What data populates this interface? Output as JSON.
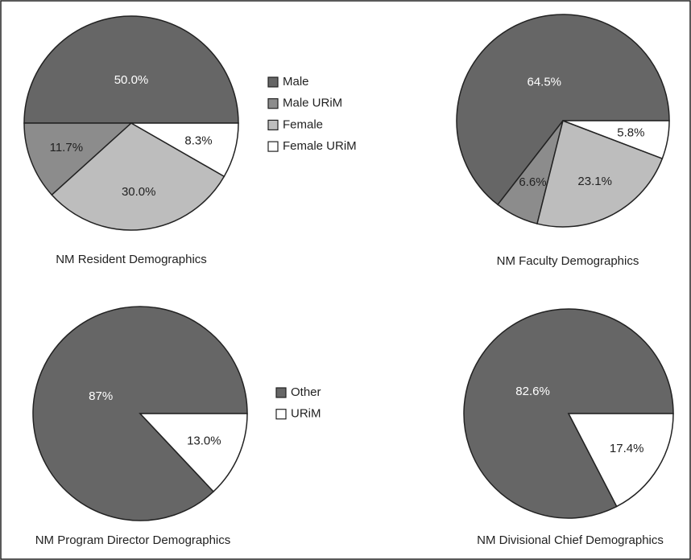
{
  "chart_data": [
    {
      "type": "pie",
      "title": "NM Resident Demographics",
      "categories": [
        "Male",
        "Male URiM",
        "Female",
        "Female URiM"
      ],
      "values": [
        50.0,
        11.7,
        30.0,
        8.3
      ],
      "value_labels": [
        "50.0%",
        "11.7%",
        "30.0%",
        "8.3%"
      ],
      "colors": [
        "#666666",
        "#8c8c8c",
        "#bdbdbd",
        "#ffffff"
      ],
      "legend": "right"
    },
    {
      "type": "pie",
      "title": "NM Faculty Demographics",
      "values": [
        64.5,
        6.6,
        23.1,
        5.8
      ],
      "value_labels": [
        "64.5%",
        "6.6%",
        "23.1%",
        "5.8%"
      ],
      "colors": [
        "#666666",
        "#8c8c8c",
        "#bdbdbd",
        "#ffffff"
      ]
    },
    {
      "type": "pie",
      "title": "NM Program Director Demographics",
      "categories": [
        "Other",
        "URiM"
      ],
      "values": [
        87,
        13.0
      ],
      "value_labels": [
        "87%",
        "13.0%"
      ],
      "colors": [
        "#666666",
        "#ffffff"
      ],
      "legend": "right"
    },
    {
      "type": "pie",
      "title": "NM Divisional Chief Demographics",
      "values": [
        82.6,
        17.4
      ],
      "value_labels": [
        "82.6%",
        "17.4%"
      ],
      "colors": [
        "#666666",
        "#ffffff"
      ]
    }
  ]
}
